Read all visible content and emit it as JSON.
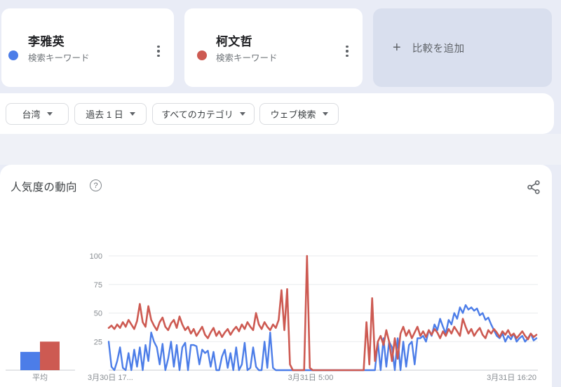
{
  "terms": {
    "cards": [
      {
        "keyword": "李雅英",
        "type_label": "検索キーワード",
        "color": "#4c7de8"
      },
      {
        "keyword": "柯文哲",
        "type_label": "検索キーワード",
        "color": "#cd5a52"
      }
    ],
    "add_comparison": {
      "plus_glyph": "+",
      "label": "比較を追加"
    }
  },
  "filters": [
    {
      "label": "台湾"
    },
    {
      "label": "過去 1 日"
    },
    {
      "label": "すべてのカテゴリ"
    },
    {
      "label": "ウェブ検索"
    }
  ],
  "trends_section": {
    "title": "人気度の動向",
    "help_glyph": "?"
  },
  "chart_data": {
    "type": "line",
    "title": "人気度の動向",
    "grid": true,
    "legend_position": "none",
    "ylim": [
      0,
      100
    ],
    "y_ticks": [
      25,
      50,
      75,
      100
    ],
    "avg_label": "平均",
    "x_axis_labels": [
      "3月30日 17...",
      "3月31日 5:00",
      "3月31日 16:20"
    ],
    "series": [
      {
        "name": "李雅英",
        "color": "#4c7de8",
        "average": 16,
        "values": [
          25,
          3,
          0,
          8,
          20,
          2,
          0,
          15,
          0,
          18,
          3,
          20,
          0,
          22,
          8,
          33,
          25,
          20,
          5,
          23,
          0,
          10,
          25,
          3,
          22,
          0,
          20,
          24,
          0,
          22,
          22,
          21,
          5,
          18,
          15,
          17,
          3,
          16,
          0,
          0,
          12,
          18,
          2,
          15,
          0,
          20,
          0,
          5,
          24,
          0,
          2,
          20,
          3,
          0,
          0,
          25,
          2,
          33,
          2,
          0,
          0,
          0,
          0,
          0,
          0,
          0,
          0,
          0,
          0,
          0,
          0,
          0,
          0,
          0,
          0,
          0,
          0,
          0,
          0,
          0,
          0,
          0,
          0,
          0,
          0,
          0,
          0,
          0,
          0,
          0,
          0,
          0,
          0,
          0,
          0,
          25,
          0,
          28,
          3,
          25,
          20,
          0,
          28,
          0,
          25,
          3,
          22,
          25,
          5,
          28,
          28,
          30,
          25,
          35,
          30,
          40,
          35,
          45,
          38,
          32,
          44,
          40,
          50,
          45,
          55,
          50,
          57,
          53,
          55,
          52,
          54,
          48,
          50,
          44,
          46,
          40,
          35,
          30,
          28,
          32,
          25,
          30,
          27,
          32,
          25,
          28,
          30,
          25,
          28,
          32,
          26,
          28
        ]
      },
      {
        "name": "柯文哲",
        "color": "#cd5a52",
        "average": 25,
        "values": [
          37,
          39,
          36,
          40,
          37,
          42,
          38,
          44,
          40,
          36,
          43,
          58,
          42,
          38,
          56,
          44,
          39,
          35,
          42,
          46,
          38,
          35,
          41,
          44,
          37,
          47,
          40,
          35,
          38,
          32,
          36,
          30,
          34,
          38,
          31,
          28,
          33,
          37,
          30,
          34,
          29,
          33,
          36,
          31,
          35,
          38,
          34,
          40,
          36,
          42,
          38,
          35,
          50,
          40,
          36,
          42,
          38,
          35,
          40,
          37,
          44,
          70,
          35,
          71,
          5,
          0,
          0,
          0,
          0,
          0,
          100,
          2,
          0,
          0,
          0,
          0,
          0,
          0,
          0,
          0,
          0,
          0,
          0,
          0,
          0,
          0,
          0,
          0,
          0,
          0,
          0,
          42,
          5,
          63,
          8,
          25,
          30,
          22,
          35,
          25,
          8,
          28,
          10,
          32,
          38,
          30,
          35,
          28,
          33,
          38,
          30,
          34,
          29,
          35,
          31,
          36,
          33,
          28,
          34,
          30,
          36,
          32,
          38,
          34,
          30,
          45,
          38,
          32,
          36,
          30,
          34,
          37,
          31,
          28,
          35,
          32,
          36,
          33,
          29,
          34,
          31,
          35,
          30,
          32,
          28,
          31,
          34,
          30,
          27,
          32,
          29,
          31
        ]
      }
    ]
  }
}
